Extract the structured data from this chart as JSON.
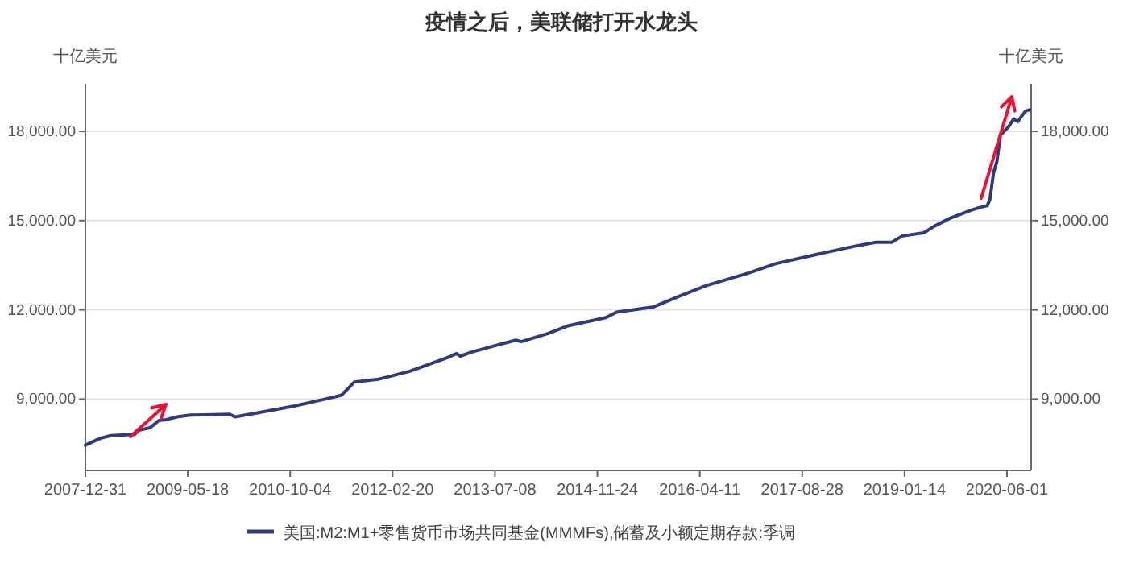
{
  "chart_data": {
    "type": "line",
    "title": "疫情之后，美联储打开水龙头",
    "ylabel": "十亿美元",
    "y2label": "十亿美元",
    "x": [
      "2007-12-31",
      "2008-03-13",
      "2008-05-04",
      "2008-08-29",
      "2008-09-19",
      "2008-11-15",
      "2008-12-25",
      "2009-02-02",
      "2009-03-26",
      "2009-05-30",
      "2009-12-11",
      "2010-01-06",
      "2010-04-21",
      "2010-10-20",
      "2011-03-26",
      "2011-06-12",
      "2011-07-08",
      "2011-08-16",
      "2011-12-11",
      "2012-05-15",
      "2012-11-14",
      "2012-12-31",
      "2013-01-18",
      "2013-03-11",
      "2013-08-02",
      "2013-10-19",
      "2013-11-14",
      "2014-03-24",
      "2014-07-06",
      "2015-01-05",
      "2015-02-26",
      "2015-08-28",
      "2016-01-04",
      "2016-05-14",
      "2016-12-08",
      "2017-04-18",
      "2017-12-08",
      "2018-05-14",
      "2018-08-26",
      "2018-11-12",
      "2019-01-03",
      "2019-04-18",
      "2019-06-09",
      "2019-08-26",
      "2019-12-08",
      "2020-01-17",
      "2020-02-25",
      "2020-03-09",
      "2020-03-27",
      "2020-04-12",
      "2020-04-30",
      "2020-06-08",
      "2020-07-04",
      "2020-07-25",
      "2020-08-12",
      "2020-09-02",
      "2020-09-20"
    ],
    "series": [
      {
        "name": "美国:M2:M1+零售货币市场共同基金(MMMFs),储蓄及小额定期存款:季调",
        "color": "#2e3b7d",
        "values": [
          7450,
          7680,
          7770,
          7810,
          7950,
          8040,
          8275,
          8310,
          8400,
          8460,
          8490,
          8400,
          8530,
          8760,
          9000,
          9125,
          9300,
          9575,
          9665,
          9935,
          10390,
          10530,
          10440,
          10570,
          10840,
          10980,
          10930,
          11200,
          11470,
          11740,
          11920,
          12100,
          12465,
          12820,
          13240,
          13550,
          13910,
          14140,
          14270,
          14270,
          14485,
          14590,
          14810,
          15080,
          15350,
          15440,
          15500,
          15710,
          16610,
          16975,
          17880,
          18150,
          18420,
          18330,
          18510,
          18690,
          18725
        ]
      }
    ],
    "xlim": [
      "2007-12-31",
      "2020-09-28"
    ],
    "xticks": [
      "2007-12-31",
      "2009-05-18",
      "2010-10-04",
      "2012-02-20",
      "2013-07-08",
      "2014-11-24",
      "2016-04-11",
      "2017-08-28",
      "2019-01-14",
      "2020-06-01"
    ],
    "ylim": [
      6600,
      19600
    ],
    "yticks": [
      {
        "value": 9000,
        "label": "9,000.00"
      },
      {
        "value": 12000,
        "label": "12,000.00"
      },
      {
        "value": 15000,
        "label": "15,000.00"
      },
      {
        "value": 18000,
        "label": "18,000.00"
      }
    ],
    "y2lim": [
      6600,
      19600
    ],
    "y2ticks": [
      {
        "value": 9000,
        "label": "9,000.00"
      },
      {
        "value": 12000,
        "label": "12,000.00"
      },
      {
        "value": 15000,
        "label": "15,000.00"
      },
      {
        "value": 18000,
        "label": "18,000.00"
      }
    ],
    "grid": "y",
    "legend": "bottom",
    "marker": "none",
    "line_style": "solid"
  }
}
